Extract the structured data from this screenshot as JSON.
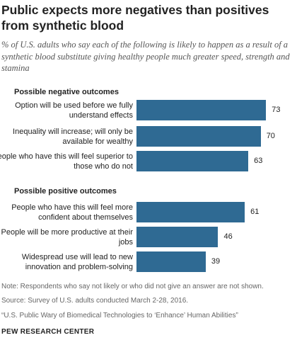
{
  "title": "Public expects more negatives than positives from synthetic blood",
  "subtitle": "% of U.S. adults who say each of the following is likely to happen as a result of a synthetic blood substitute giving healthy people much greater speed, strength and stamina",
  "chart_data": {
    "type": "bar",
    "orientation": "horizontal",
    "groups": [
      {
        "label": "Possible negative outcomes",
        "items": [
          {
            "label": "Option will be used before we fully understand effects",
            "value": 73
          },
          {
            "label": "Inequality will increase; will only be available for wealthy",
            "value": 70
          },
          {
            "label": "People who have this will feel superior to those who do not",
            "value": 63
          }
        ]
      },
      {
        "label": "Possible positive outcomes",
        "items": [
          {
            "label": "People who have this will feel more confident about themselves",
            "value": 61
          },
          {
            "label": "People will be more productive at their jobs",
            "value": 46
          },
          {
            "label": "Widespread use will lead to new innovation and problem-solving",
            "value": 39
          }
        ]
      }
    ],
    "bar_color": "#2f6a93",
    "grid": false,
    "legend": "none"
  },
  "footnotes": {
    "note": "Note: Respondents who say not likely or who did not give an answer are not shown.",
    "source": "Source: Survey of U.S. adults conducted March 2-28, 2016.",
    "report": "“U.S. Public Wary of Biomedical Technologies to ‘Enhance’ Human Abilities”",
    "brand": "PEW RESEARCH CENTER"
  }
}
